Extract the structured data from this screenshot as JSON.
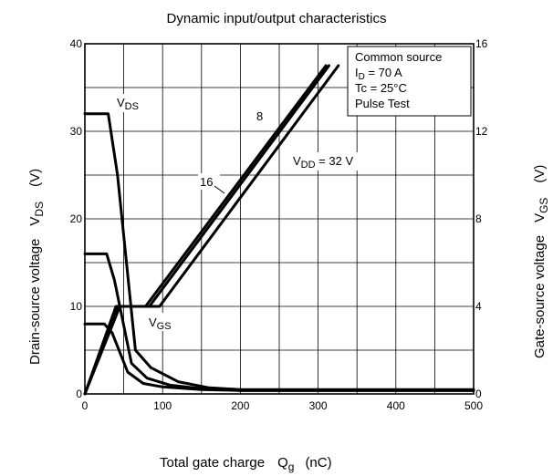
{
  "chart_data": {
    "type": "line",
    "title": "Dynamic input/output characteristics",
    "xlabel": {
      "main": "Total gate charge",
      "sym": "Q",
      "sub": "g",
      "unit": "(nC)"
    },
    "ylabel_left": {
      "main": "Drain-source voltage",
      "sym": "V",
      "sub": "DS",
      "unit": "(V)"
    },
    "ylabel_right": {
      "main": "Gate-source voltage",
      "sym": "V",
      "sub": "GS",
      "unit": "(V)"
    },
    "xlim": [
      0,
      500
    ],
    "ylim_left": [
      0,
      40
    ],
    "ylim_right": [
      0,
      16
    ],
    "x_ticks": [
      "0",
      "100",
      "200",
      "300",
      "400",
      "500"
    ],
    "y_left_ticks": [
      "0",
      "10",
      "20",
      "30",
      "40"
    ],
    "y_right_ticks": [
      "0",
      "4",
      "8",
      "12",
      "16"
    ],
    "grid": true,
    "legend_box": {
      "lines": [
        {
          "text": "Common source"
        },
        {
          "main": "I",
          "sub": "D",
          "rest": " = 70 A"
        },
        {
          "text": "Tc = 25°C"
        },
        {
          "text": "Pulse Test"
        }
      ]
    },
    "annotations": {
      "vds": {
        "main": "V",
        "sub": "DS"
      },
      "vgs": {
        "main": "V",
        "sub": "GS"
      },
      "vdd": {
        "main": "V",
        "sub": "DD",
        "rest": " = 32 V"
      },
      "l8": "8",
      "l16": "16"
    },
    "series_vds": [
      {
        "vdd": "8",
        "points": [
          [
            0,
            8
          ],
          [
            25,
            8
          ],
          [
            35,
            7
          ],
          [
            55,
            2.5
          ],
          [
            75,
            1.2
          ],
          [
            100,
            0.8
          ],
          [
            150,
            0.5
          ],
          [
            200,
            0.4
          ],
          [
            500,
            0.4
          ]
        ]
      },
      {
        "vdd": "16",
        "points": [
          [
            0,
            16
          ],
          [
            28,
            16
          ],
          [
            38,
            13
          ],
          [
            60,
            3.5
          ],
          [
            80,
            1.8
          ],
          [
            110,
            1.0
          ],
          [
            150,
            0.6
          ],
          [
            200,
            0.4
          ],
          [
            500,
            0.4
          ]
        ]
      },
      {
        "vdd": "32",
        "points": [
          [
            0,
            32
          ],
          [
            30,
            32
          ],
          [
            42,
            25
          ],
          [
            65,
            5
          ],
          [
            85,
            3
          ],
          [
            120,
            1.4
          ],
          [
            160,
            0.7
          ],
          [
            200,
            0.5
          ],
          [
            500,
            0.5
          ]
        ]
      }
    ],
    "series_vgs": [
      {
        "vdd": "8",
        "points": [
          [
            0,
            0
          ],
          [
            40,
            4
          ],
          [
            78,
            4
          ],
          [
            310,
            15
          ]
        ]
      },
      {
        "vdd": "16",
        "points": [
          [
            0,
            0
          ],
          [
            42,
            4
          ],
          [
            83,
            4
          ],
          [
            314,
            15
          ]
        ]
      },
      {
        "vdd": "32",
        "points": [
          [
            0,
            0
          ],
          [
            45,
            4
          ],
          [
            96,
            4
          ],
          [
            326,
            15
          ]
        ]
      }
    ]
  }
}
